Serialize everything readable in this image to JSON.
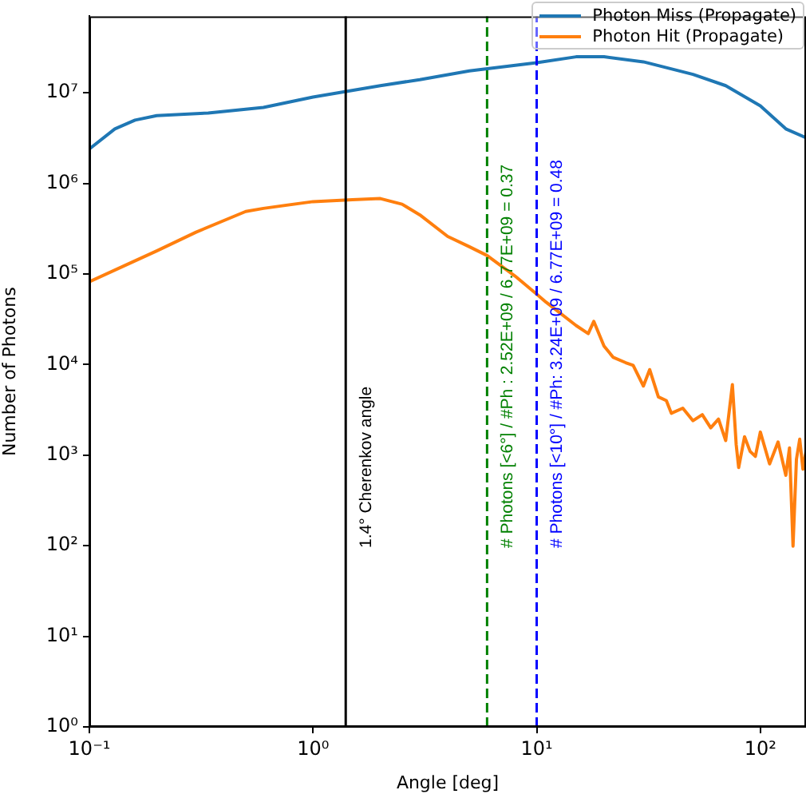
{
  "chart_data": {
    "type": "line",
    "xlabel": "Angle [deg]",
    "ylabel": "Number of Photons",
    "log": "xy",
    "xlim": [
      0.1,
      160
    ],
    "ylim": [
      1,
      70000000
    ],
    "xticks": [
      {
        "value": 0.1,
        "label": "10⁻¹"
      },
      {
        "value": 1,
        "label": "10⁰"
      },
      {
        "value": 10,
        "label": "10¹"
      },
      {
        "value": 100,
        "label": "10²"
      }
    ],
    "yticks": [
      {
        "value": 1,
        "label": "10⁰"
      },
      {
        "value": 10,
        "label": "10¹"
      },
      {
        "value": 100,
        "label": "10²"
      },
      {
        "value": 1000,
        "label": "10³"
      },
      {
        "value": 10000,
        "label": "10⁴"
      },
      {
        "value": 100000,
        "label": "10⁵"
      },
      {
        "value": 1000000,
        "label": "10⁶"
      },
      {
        "value": 10000000,
        "label": "10⁷"
      }
    ],
    "grid": false,
    "legend": "top right",
    "marker": "none",
    "series": [
      {
        "name": "Photon Miss (Propagate)",
        "color": "#1f77b4",
        "x": [
          0.1,
          0.13,
          0.16,
          0.2,
          0.34,
          0.6,
          1,
          2,
          3,
          5,
          10,
          15,
          20,
          30,
          50,
          70,
          100,
          130,
          160
        ],
        "values": [
          2400000,
          4000000,
          5000000,
          5600000,
          6000000,
          6900000,
          9000000,
          12000000,
          14000000,
          17500000,
          21500000,
          25000000,
          25000000,
          22000000,
          16000000,
          12000000,
          7200000,
          4000000,
          3200000
        ]
      },
      {
        "name": "Photon Hit (Propagate)",
        "color": "#ff7f0e",
        "x": [
          0.1,
          0.15,
          0.2,
          0.3,
          0.5,
          0.6,
          1,
          1.5,
          2,
          2.5,
          3,
          4,
          5,
          6,
          8,
          10,
          11,
          15,
          17,
          18,
          20,
          22,
          25,
          27,
          30,
          32,
          35,
          38,
          40,
          45,
          50,
          55,
          60,
          65,
          70,
          75,
          78,
          80,
          85,
          90,
          95,
          100,
          110,
          120,
          130,
          135,
          140,
          145,
          150,
          155,
          160
        ],
        "values": [
          82000,
          130000,
          180000,
          290000,
          490000,
          530000,
          630000,
          660000,
          680000,
          590000,
          450000,
          260000,
          200000,
          160000,
          95000,
          60000,
          49000,
          27000,
          22000,
          30000,
          16000,
          12000,
          10500,
          9800,
          5800,
          8800,
          4400,
          4000,
          2900,
          3300,
          2400,
          2800,
          2000,
          2500,
          1450,
          6000,
          1300,
          730,
          1600,
          1100,
          970,
          1800,
          800,
          1400,
          600,
          1200,
          99,
          900,
          1500,
          700,
          1100
        ]
      }
    ],
    "ref_lines": [
      {
        "axis": "x",
        "value": 1.4,
        "label": "1.4° Cherenkov angle",
        "color": "#000000",
        "line_style": "solid"
      },
      {
        "axis": "x",
        "value": 6,
        "label": "# Photons [<6°] / #Ph : 2.52E+09 / 6.77E+09 = 0.37",
        "color": "#008000",
        "line_style": "dashed"
      },
      {
        "axis": "x",
        "value": 10,
        "label": "# Photons [<10°] / #Ph: 3.24E+09 / 6.77E+09 = 0.48",
        "color": "#0000ff",
        "line_style": "dashed"
      }
    ]
  }
}
